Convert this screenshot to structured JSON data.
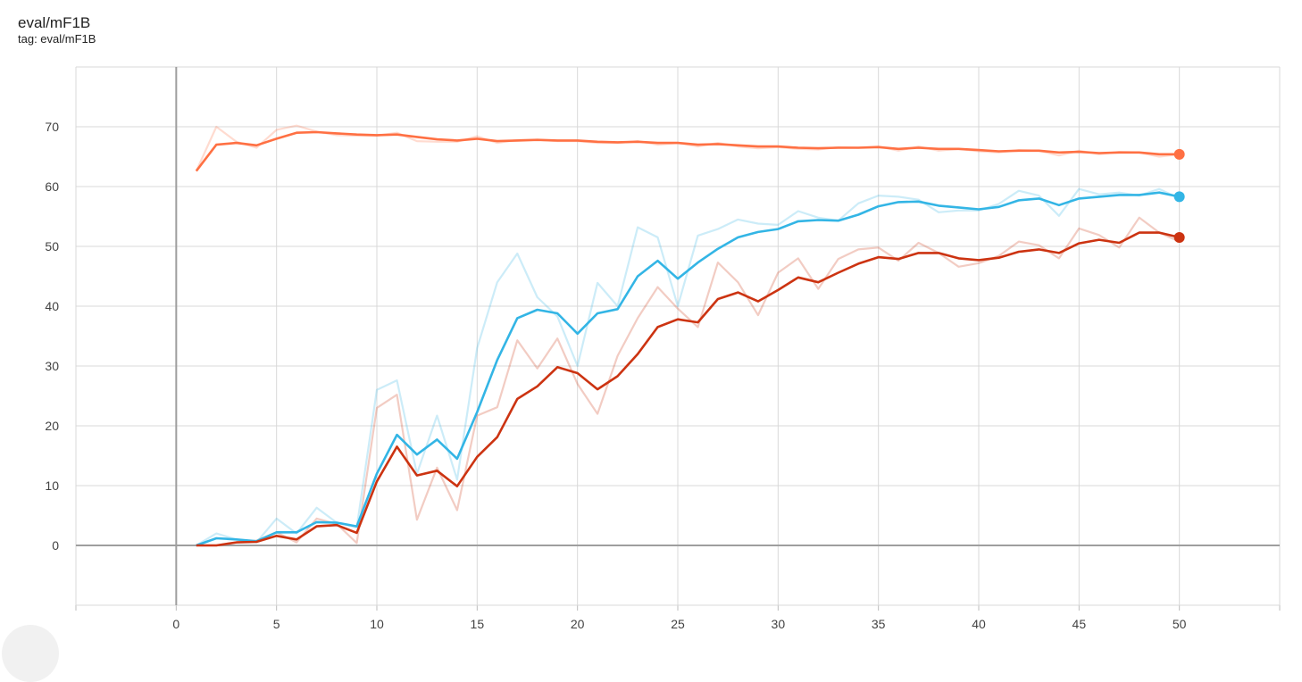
{
  "header": {
    "title": "eval/mF1B",
    "subtitle": "tag: eval/mF1B"
  },
  "colors": {
    "series_orange": "#ff7043",
    "series_blue": "#33b5e5",
    "series_red": "#cc3311",
    "grid": "#d9d9d9",
    "axis": "#9e9e9e"
  },
  "chart_data": {
    "type": "line",
    "title": "eval/mF1B",
    "xlim": [
      -5,
      55
    ],
    "ylim": [
      -10,
      80
    ],
    "x_ticks": [
      0,
      5,
      10,
      15,
      20,
      25,
      30,
      35,
      40,
      45,
      50
    ],
    "y_ticks": [
      0,
      10,
      20,
      30,
      40,
      50,
      60,
      70
    ],
    "grid": true,
    "smoothed_series_shown_with_faded_raw": true,
    "series": [
      {
        "color": "#ff7043",
        "x": [
          1,
          2,
          3,
          4,
          5,
          6,
          7,
          8,
          9,
          10,
          11,
          12,
          13,
          14,
          15,
          16,
          17,
          18,
          19,
          20,
          21,
          22,
          23,
          24,
          25,
          26,
          27,
          28,
          29,
          30,
          31,
          32,
          33,
          34,
          35,
          36,
          37,
          38,
          39,
          40,
          41,
          42,
          43,
          44,
          45,
          46,
          47,
          48,
          49,
          50
        ],
        "smoothed": [
          62.6,
          67.0,
          67.3,
          66.9,
          68.0,
          69.0,
          69.1,
          68.9,
          68.7,
          68.6,
          68.7,
          68.3,
          67.9,
          67.7,
          68.0,
          67.6,
          67.7,
          67.8,
          67.7,
          67.7,
          67.5,
          67.4,
          67.5,
          67.3,
          67.3,
          67.0,
          67.1,
          66.9,
          66.7,
          66.7,
          66.5,
          66.4,
          66.5,
          66.5,
          66.6,
          66.3,
          66.5,
          66.3,
          66.3,
          66.1,
          65.9,
          66.0,
          66.0,
          65.7,
          65.8,
          65.6,
          65.7,
          65.7,
          65.4,
          65.4
        ],
        "raw": [
          62.6,
          70.0,
          67.5,
          66.5,
          69.5,
          70.2,
          69.2,
          68.6,
          68.5,
          68.5,
          69.0,
          67.6,
          67.5,
          67.5,
          68.4,
          67.3,
          67.8,
          67.8,
          67.6,
          67.6,
          67.3,
          67.3,
          67.6,
          67.0,
          67.3,
          66.7,
          67.3,
          66.7,
          66.4,
          66.6,
          66.3,
          66.2,
          66.6,
          66.5,
          66.7,
          66.0,
          66.7,
          66.0,
          66.3,
          65.9,
          65.7,
          66.1,
          66.0,
          65.2,
          66.0,
          65.4,
          65.8,
          65.7,
          65.0,
          65.4
        ]
      },
      {
        "color": "#33b5e5",
        "x": [
          1,
          2,
          3,
          4,
          5,
          6,
          7,
          8,
          9,
          10,
          11,
          12,
          13,
          14,
          15,
          16,
          17,
          18,
          19,
          20,
          21,
          22,
          23,
          24,
          25,
          26,
          27,
          28,
          29,
          30,
          31,
          32,
          33,
          34,
          35,
          36,
          37,
          38,
          39,
          40,
          41,
          42,
          43,
          44,
          45,
          46,
          47,
          48,
          49,
          50
        ],
        "smoothed": [
          0.0,
          1.2,
          1.0,
          0.7,
          2.2,
          2.2,
          3.9,
          3.8,
          3.2,
          12.0,
          18.5,
          15.2,
          17.7,
          14.5,
          22.3,
          31.0,
          38.0,
          39.4,
          38.8,
          35.4,
          38.8,
          39.5,
          45.0,
          47.6,
          44.6,
          47.3,
          49.6,
          51.5,
          52.4,
          52.9,
          54.2,
          54.4,
          54.3,
          55.3,
          56.7,
          57.4,
          57.5,
          56.8,
          56.5,
          56.2,
          56.6,
          57.7,
          58.0,
          56.9,
          58.0,
          58.3,
          58.6,
          58.6,
          59.0,
          58.3
        ],
        "raw": [
          0.0,
          2.0,
          1.0,
          0.5,
          4.5,
          2.0,
          6.3,
          3.8,
          3.0,
          26.0,
          27.6,
          12.0,
          21.7,
          11.0,
          33.0,
          44.0,
          48.8,
          41.5,
          38.3,
          30.0,
          43.9,
          40.0,
          53.2,
          51.5,
          40.0,
          51.8,
          52.9,
          54.5,
          53.8,
          53.6,
          55.9,
          54.8,
          54.3,
          57.2,
          58.5,
          58.3,
          57.8,
          55.7,
          56.0,
          56.0,
          57.1,
          59.3,
          58.5,
          55.1,
          59.6,
          58.7,
          59.0,
          58.5,
          59.6,
          58.0
        ]
      },
      {
        "color": "#cc3311",
        "x": [
          1,
          2,
          3,
          4,
          5,
          6,
          7,
          8,
          9,
          10,
          11,
          12,
          13,
          14,
          15,
          16,
          17,
          18,
          19,
          20,
          21,
          22,
          23,
          24,
          25,
          26,
          27,
          28,
          29,
          30,
          31,
          32,
          33,
          34,
          35,
          36,
          37,
          38,
          39,
          40,
          41,
          42,
          43,
          44,
          45,
          46,
          47,
          48,
          49,
          50
        ],
        "smoothed": [
          0.0,
          0.0,
          0.5,
          0.6,
          1.6,
          1.0,
          3.2,
          3.4,
          2.1,
          10.7,
          16.5,
          11.7,
          12.5,
          9.9,
          14.8,
          18.1,
          24.5,
          26.6,
          29.8,
          28.8,
          26.1,
          28.3,
          32.0,
          36.5,
          37.8,
          37.3,
          41.2,
          42.3,
          40.8,
          42.7,
          44.8,
          44.0,
          45.6,
          47.1,
          48.2,
          47.9,
          48.9,
          48.9,
          48.0,
          47.7,
          48.1,
          49.1,
          49.5,
          48.9,
          50.5,
          51.1,
          50.6,
          52.3,
          52.3,
          51.5
        ],
        "raw": [
          0.0,
          0.0,
          0.5,
          0.8,
          2.2,
          0.5,
          4.5,
          3.6,
          0.4,
          23.0,
          25.2,
          4.3,
          13.0,
          5.9,
          21.7,
          23.1,
          34.3,
          29.6,
          34.6,
          27.0,
          22.0,
          31.7,
          38.0,
          43.2,
          39.6,
          36.5,
          47.3,
          44.0,
          38.5,
          45.6,
          48.0,
          42.9,
          47.9,
          49.5,
          49.8,
          47.6,
          50.6,
          48.9,
          46.6,
          47.2,
          48.4,
          50.8,
          50.2,
          48.0,
          53.0,
          51.9,
          49.8,
          54.8,
          52.3,
          50.8
        ]
      }
    ]
  }
}
